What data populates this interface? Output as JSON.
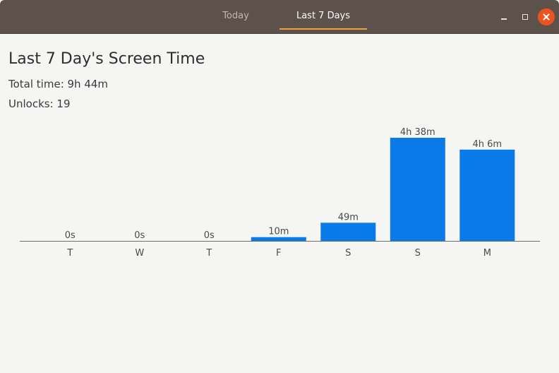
{
  "window": {
    "tabs": [
      {
        "label": "Today",
        "active": false
      },
      {
        "label": "Last 7 Days",
        "active": true
      }
    ],
    "controls": {
      "minimize_icon": "minimize-icon",
      "maximize_icon": "maximize-icon",
      "close_icon": "close-icon"
    },
    "colors": {
      "titlebar": "#5c524b",
      "active_tab_underline": "#e9a33b",
      "close_button": "#e95420"
    }
  },
  "main": {
    "title": "Last 7 Day's Screen Time",
    "total_time": "Total time: 9h 44m",
    "unlocks": "Unlocks: 19"
  },
  "chart_data": {
    "type": "bar",
    "categories": [
      "T",
      "W",
      "T",
      "F",
      "S",
      "S",
      "M"
    ],
    "values_minutes": [
      0,
      0,
      0,
      10,
      49,
      278,
      246
    ],
    "data_labels": [
      "0s",
      "0s",
      "0s",
      "10m",
      "49m",
      "4h 38m",
      "4h 6m"
    ],
    "title": "",
    "xlabel": "",
    "ylabel": "",
    "ylim": [
      0,
      278
    ],
    "grid": false,
    "legend": "none",
    "bar_color": "#0a7ae9"
  }
}
